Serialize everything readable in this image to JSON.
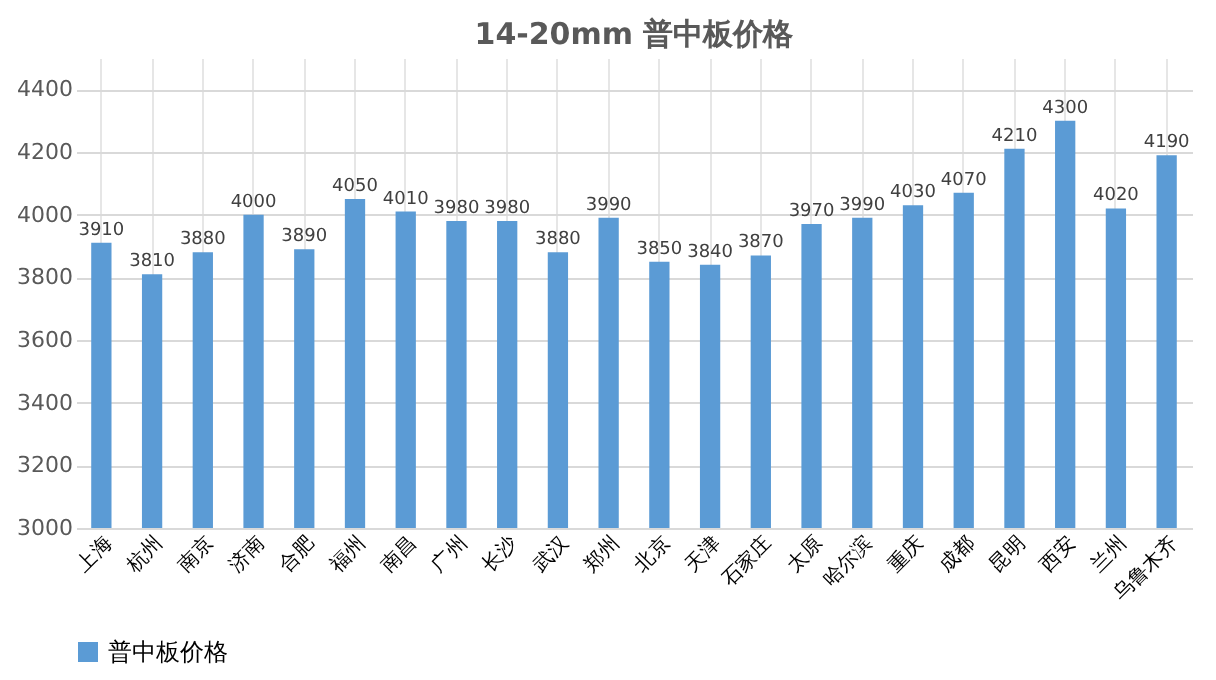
{
  "chart_data": {
    "type": "bar",
    "title": "14-20mm 普中板价格",
    "categories": [
      "上海",
      "杭州",
      "南京",
      "济南",
      "合肥",
      "福州",
      "南昌",
      "广州",
      "长沙",
      "武汉",
      "郑州",
      "北京",
      "天津",
      "石家庄",
      "太原",
      "哈尔滨",
      "重庆",
      "成都",
      "昆明",
      "西安",
      "兰州",
      "乌鲁木齐"
    ],
    "series": [
      {
        "name": "普中板价格",
        "color": "#5b9bd5",
        "values": [
          3910,
          3810,
          3880,
          4000,
          3890,
          4050,
          4010,
          3980,
          3980,
          3880,
          3990,
          3850,
          3840,
          3870,
          3970,
          3990,
          4030,
          4070,
          4210,
          4300,
          4020,
          4190
        ]
      }
    ],
    "ylim": [
      3000,
      4500
    ],
    "yticks": [
      3000,
      3200,
      3400,
      3600,
      3800,
      4000,
      4200,
      4400
    ],
    "grid": true,
    "data_labels": true,
    "legend": "bottom"
  }
}
